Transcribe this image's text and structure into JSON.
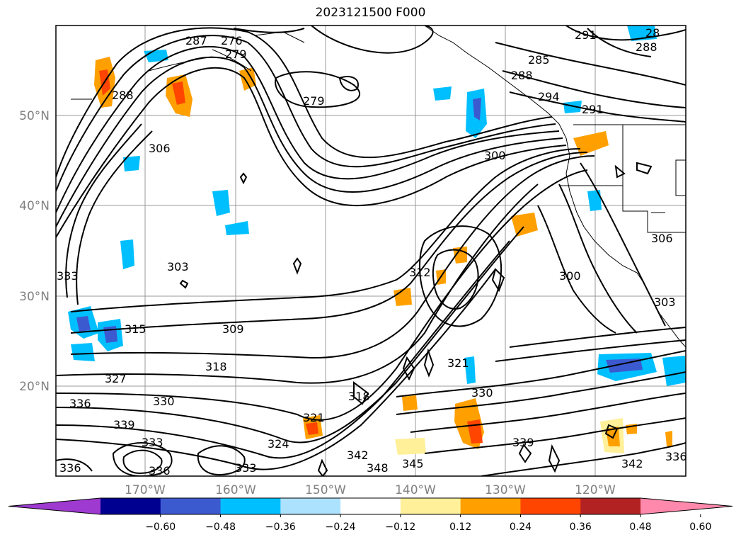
{
  "title": "2023121500 F000",
  "lat_labels": [
    "50°N",
    "40°N",
    "30°N",
    "20°N"
  ],
  "lon_labels": [
    "170°W",
    "160°W",
    "150°W",
    "140°W",
    "130°W",
    "120°W"
  ],
  "contour_labels": [
    "287",
    "276",
    "279",
    "285",
    "288",
    "291",
    "288",
    "28",
    "279",
    "294",
    "291",
    "288",
    "306",
    "300",
    "306",
    "303",
    "312",
    "300",
    "303",
    "333",
    "315",
    "309",
    "318",
    "327",
    "321",
    "336",
    "330",
    "330",
    "339",
    "318",
    "321",
    "339",
    "333",
    "336",
    "333",
    "324",
    "342",
    "348",
    "345",
    "342",
    "336",
    "336"
  ],
  "colorbar": {
    "colors": [
      "#9e3ad0",
      "#000090",
      "#3c5ad0",
      "#00bfff",
      "#ade2ff",
      "#ffffff",
      "#fff099",
      "#ffa000",
      "#ff4500",
      "#b22222",
      "#ff89ac"
    ],
    "tick_labels": [
      "−0.60",
      "−0.48",
      "−0.36",
      "−0.24",
      "−0.12",
      "0.12",
      "0.24",
      "0.36",
      "0.48",
      "0.60"
    ]
  }
}
